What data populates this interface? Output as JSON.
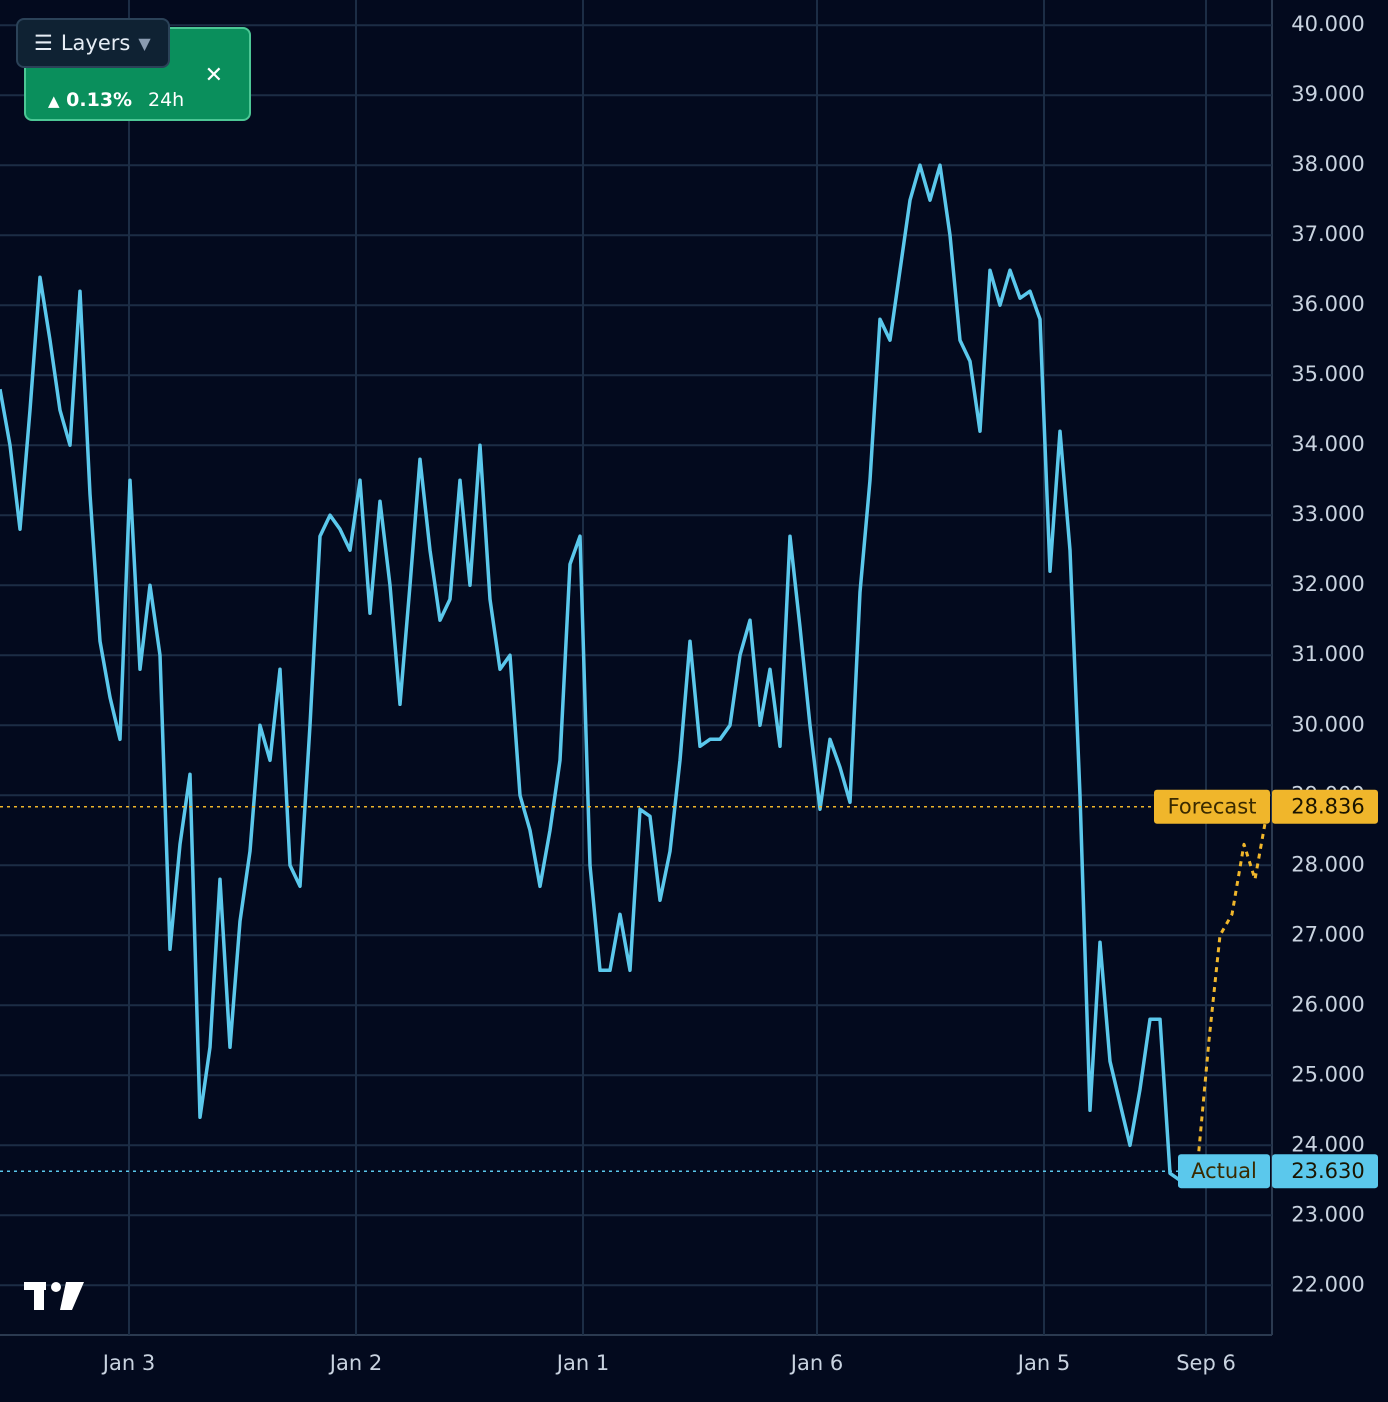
{
  "chart_data": {
    "type": "line",
    "ylim": [
      21.29,
      40.36
    ],
    "yticks": [
      {
        "value": 22,
        "label": "22.000"
      },
      {
        "value": 23,
        "label": "23.000"
      },
      {
        "value": 24,
        "label": "24.000"
      },
      {
        "value": 25,
        "label": "25.000"
      },
      {
        "value": 26,
        "label": "26.000"
      },
      {
        "value": 27,
        "label": "27.000"
      },
      {
        "value": 28,
        "label": "28.000"
      },
      {
        "value": 29,
        "label": "29.000"
      },
      {
        "value": 30,
        "label": "30.000"
      },
      {
        "value": 31,
        "label": "31.000"
      },
      {
        "value": 32,
        "label": "32.000"
      },
      {
        "value": 33,
        "label": "33.000"
      },
      {
        "value": 34,
        "label": "34.000"
      },
      {
        "value": 35,
        "label": "35.000"
      },
      {
        "value": 36,
        "label": "36.000"
      },
      {
        "value": 37,
        "label": "37.000"
      },
      {
        "value": 38,
        "label": "38.000"
      },
      {
        "value": 39,
        "label": "39.000"
      },
      {
        "value": 40,
        "label": "40.000"
      }
    ],
    "xlim": [
      0,
      127.2
    ],
    "xticks": [
      {
        "value": 12.9,
        "label": "Jan 3"
      },
      {
        "value": 35.6,
        "label": "Jan 2"
      },
      {
        "value": 58.3,
        "label": "Jan 1"
      },
      {
        "value": 81.7,
        "label": "Jan 6"
      },
      {
        "value": 104.4,
        "label": "Jan 5"
      },
      {
        "value": 120.6,
        "label": "Sep 6"
      }
    ],
    "grid": true,
    "series": [
      {
        "name": "Actual",
        "color": "#5bc8ec",
        "values": [
          34.8,
          34.0,
          32.8,
          34.5,
          36.4,
          35.5,
          34.5,
          34.0,
          36.2,
          33.3,
          31.2,
          30.4,
          29.8,
          33.5,
          30.8,
          32.0,
          31.0,
          26.8,
          28.3,
          29.3,
          24.4,
          25.4,
          27.8,
          25.4,
          27.2,
          28.2,
          30.0,
          29.5,
          30.8,
          28.0,
          27.7,
          30.0,
          32.7,
          33.0,
          32.8,
          32.5,
          33.5,
          31.6,
          33.2,
          32.0,
          30.3,
          32.0,
          33.8,
          32.5,
          31.5,
          31.8,
          33.5,
          32.0,
          34.0,
          31.8,
          30.8,
          31.0,
          29.0,
          28.5,
          27.7,
          28.5,
          29.5,
          32.3,
          32.7,
          28.0,
          26.5,
          26.5,
          27.3,
          26.5,
          28.8,
          28.7,
          27.5,
          28.2,
          29.5,
          31.2,
          29.7,
          29.8,
          29.8,
          30.0,
          31.0,
          31.5,
          30.0,
          30.8,
          29.7,
          32.7,
          31.4,
          30.0,
          28.8,
          29.8,
          29.4,
          28.9,
          31.9,
          33.5,
          35.8,
          35.5,
          36.5,
          37.5,
          38.0,
          37.5,
          38.0,
          37.0,
          35.5,
          35.2,
          34.2,
          36.5,
          36.0,
          36.5,
          36.1,
          36.2,
          35.8,
          32.2,
          34.2,
          32.5,
          29.0,
          24.5,
          26.9,
          25.2,
          24.6,
          24.0,
          24.8,
          25.8,
          25.8,
          23.6,
          23.5
        ]
      },
      {
        "name": "Forecast",
        "color": "#f0b62b",
        "x": [
          119.7,
          120.9,
          122.0,
          123.2,
          124.4,
          125.5,
          126.8
        ],
        "values": [
          23.63,
          25.5,
          27.0,
          27.3,
          28.3,
          27.8,
          28.836
        ]
      }
    ],
    "markers": [
      {
        "name": "Forecast",
        "value": 28.836,
        "color": "#f0b62b"
      },
      {
        "name": "Actual",
        "value": 23.63,
        "label": "23.630",
        "color": "#5bc8ec"
      }
    ],
    "widget": {
      "button": "Layers",
      "change": "0.13%",
      "period": "24h"
    }
  }
}
